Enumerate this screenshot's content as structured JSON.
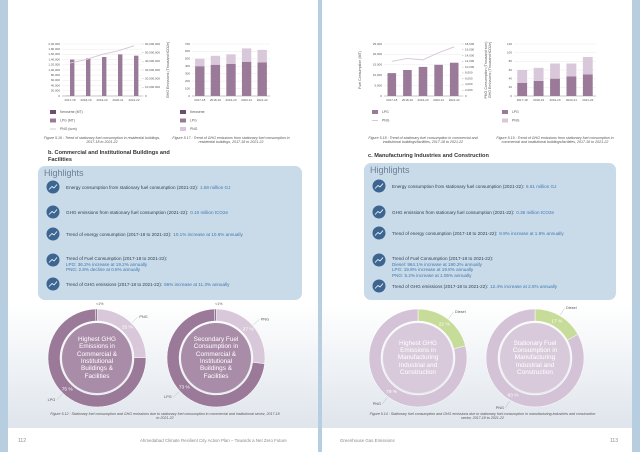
{
  "left_page": {
    "figures": [
      {
        "type": "bar_line",
        "categories": [
          "2017-18",
          "2018-19",
          "2019-20",
          "2020-21",
          "2021-22"
        ],
        "ylim": [
          0,
          200000
        ],
        "yticks": [
          0,
          {
            "value": 20000,
            "label": "20,000"
          },
          {
            "value": 40000,
            "label": "40,000"
          },
          {
            "value": 60000,
            "label": "60,000"
          },
          {
            "value": 80000,
            "label": "80,000"
          },
          {
            "value": 100000,
            "label": "1,00,000"
          },
          {
            "value": 120000,
            "label": "1,20,000"
          },
          {
            "value": 140000,
            "label": "1,40,000"
          },
          {
            "value": 160000,
            "label": "1,60,000"
          },
          {
            "value": 180000,
            "label": "1,80,000"
          },
          {
            "value": 200000,
            "label": "2,00,000"
          }
        ],
        "y2lim": [
          0,
          60000000
        ],
        "y2ticks": [
          0,
          {
            "value": 10000000,
            "label": "10,000,000"
          },
          {
            "value": 20000000,
            "label": "20,000,000"
          },
          {
            "value": 30000000,
            "label": "30,000,000"
          },
          {
            "value": 40000000,
            "label": "40,000,000"
          },
          {
            "value": 50000000,
            "label": "50,000,000"
          },
          {
            "value": 60000000,
            "label": "60,000,000"
          }
        ],
        "series": [
          {
            "name": "Kerosene (MT)",
            "color": "#6b4e6b",
            "values": [
              500,
              400,
              300,
              200,
              100
            ]
          },
          {
            "name": "LPG (MT)",
            "color": "#9a7a98",
            "values": [
              140000,
              145000,
              150000,
              160000,
              155000
            ]
          },
          {
            "name": "PNG (scm)",
            "color": "#d9c8da",
            "axis": "y2",
            "values": [
              38000000,
              42000000,
              48000000,
              52000000,
              58000000
            ]
          }
        ],
        "caption": "Figure 5.16 : Trend of stationary fuel consumption in residential buildings, 2017-18 to 2021-22"
      },
      {
        "type": "stacked_bar",
        "y_title": "GHG Emissions (Thousand tCO2e)",
        "categories": [
          "2017-18",
          "2018-19",
          "2019-20",
          "2020-21",
          "2021-22"
        ],
        "ylim": [
          0,
          700
        ],
        "yticks": [
          0,
          100,
          200,
          300,
          400,
          500,
          600,
          700
        ],
        "series": [
          {
            "name": "Kerosene",
            "color": "#6b4e6b",
            "values": [
              1,
              1,
              1,
              1,
              1
            ]
          },
          {
            "name": "LPG",
            "color": "#9a7a98",
            "values": [
              400,
              420,
              430,
              460,
              450
            ]
          },
          {
            "name": "PNG",
            "color": "#d9c8da",
            "values": [
              100,
              120,
              130,
              180,
              170
            ]
          }
        ],
        "caption": "Figure 5.17 : Trend of GHG emissions from stationary fuel consumption in residential buildings, 2017-18 to 2021-22"
      }
    ],
    "section_title": "b. Commercial and Institutional Buildings and Facilities",
    "highlights": {
      "title": "Highlights",
      "items": [
        {
          "label": "Energy consumption from stationary fuel consumption (2021-22):",
          "value": "1.58 million GJ"
        },
        {
          "label": "GHG emissions from stationary fuel consumption (2021-22):",
          "value": "0.10 million tCO2e"
        },
        {
          "label": "Trend of energy consumption (2017-18 to 2021-22):",
          "value": "10.1% increase at 10.6% annually"
        },
        {
          "label": "Trend of Fuel Consumption (2017-18 to 2021-22):",
          "lines": [
            "LPG: 36.2% increase at 19.2% annually",
            "PNG: 2.8% decline at 0.8% annually"
          ]
        },
        {
          "label": "Trend of GHG emissions (2017-18 to 2021-22):",
          "value": "56% increase at 11.3% annually"
        }
      ]
    },
    "donuts": [
      {
        "title": "Highest GHG Emissions in Commercial & Institutional Buildings & Facilities",
        "center_color": "#a98ca8",
        "segments": [
          {
            "name": "PNG",
            "value": 25,
            "label": "25 %",
            "color": "#d9c8da"
          },
          {
            "name": "LPG",
            "value": 75,
            "label": "75 %",
            "color": "#9a7a98"
          },
          {
            "value": 0.5,
            "label": "<1%",
            "color": "#6b4e6b"
          }
        ]
      },
      {
        "title": "Secondary Fuel Consumption in Commercial & Institutional Buildings & Facilities",
        "center_color": "#a98ca8",
        "segments": [
          {
            "name": "PNG",
            "value": 27,
            "label": "27 %",
            "color": "#d9c8da"
          },
          {
            "name": "LPG",
            "value": 73,
            "label": "73 %",
            "color": "#9a7a98"
          },
          {
            "value": 0.5,
            "label": "<1%",
            "color": "#6b4e6b"
          }
        ]
      }
    ],
    "caption": "Figure 5.12 : Stationary fuel consumption and GHG emissions due to stationary fuel consumption in commercial and institutional sector, 2017-18 to 2021-22",
    "footer": {
      "page": "112",
      "text": "Ahmedabad Climate Resilient City Action Plan – Towards a Net Zero Future"
    }
  },
  "right_page": {
    "figures": [
      {
        "type": "bar_line",
        "y_title": "Fuel Consumption (MT)",
        "y2_title": "PNG Consumption (Thousand scm)",
        "categories": [
          "2017-18",
          "2018-19",
          "2019-20",
          "2020-21",
          "2021-22"
        ],
        "ylim": [
          0,
          25000
        ],
        "yticks": [
          0,
          {
            "value": 5000,
            "label": "5,000"
          },
          {
            "value": 10000,
            "label": "10,000"
          },
          {
            "value": 15000,
            "label": "15,000"
          },
          {
            "value": 20000,
            "label": "20,000"
          },
          {
            "value": 25000,
            "label": "25,000"
          }
        ],
        "y2lim": [
          0,
          18000
        ],
        "y2ticks": [
          0,
          {
            "value": 2000,
            "label": "2,000"
          },
          {
            "value": 4000,
            "label": "4,000"
          },
          {
            "value": 6000,
            "label": "6,000"
          },
          {
            "value": 8000,
            "label": "8,000"
          },
          {
            "value": 10000,
            "label": "10,000"
          },
          {
            "value": 12000,
            "label": "12,000"
          },
          {
            "value": 14000,
            "label": "14,000"
          },
          {
            "value": 16000,
            "label": "16,000"
          },
          {
            "value": 18000,
            "label": "18,000"
          }
        ],
        "series": [
          {
            "name": "LPG",
            "color": "#9a7a98",
            "values": [
              11000,
              12500,
              14000,
              15000,
              16000
            ]
          },
          {
            "name": "PNG",
            "color": "#d9c8da",
            "axis": "y2",
            "values": [
              12000,
              13000,
              12500,
              15000,
              17000
            ]
          }
        ],
        "caption": "Figure 5.18 : Trend of stationary fuel consumption in commercial and institutional buildings/facilities, 2017-18 to 2021-22"
      },
      {
        "type": "stacked_bar",
        "y_title": "GHG Emissions (Thousand tCO2e)",
        "categories": [
          "2017-18",
          "2018-19",
          "2019-20",
          "2020-21",
          "2021-22"
        ],
        "ylim": [
          0,
          120
        ],
        "yticks": [
          0,
          20,
          40,
          60,
          80,
          100,
          120
        ],
        "series": [
          {
            "name": "LPG",
            "color": "#9a7a98",
            "values": [
              30,
              35,
              40,
              45,
              50
            ]
          },
          {
            "name": "PNG",
            "color": "#d9c8da",
            "values": [
              30,
              30,
              35,
              30,
              40
            ]
          }
        ],
        "caption": "Figure 5.19 : Trend of GHG emissions from stationary fuel consumption in commercial and institutional buildings/facilities, 2017-18 to 2021-22"
      }
    ],
    "section_title": "c. Manufacturing Industries and Construction",
    "highlights": {
      "title": "Highlights",
      "items": [
        {
          "label": "Energy consumption from stationary fuel consumption (2021-22):",
          "value": "6.61 million GJ"
        },
        {
          "label": "GHG emissions from stationary fuel consumption (2021-22):",
          "value": "0.36 million tCO2e"
        },
        {
          "label": "Trend of energy consumption (2017-18 to 2021-22):",
          "value": "8.9% increase at 1.8% annually"
        },
        {
          "label": "Trend of Fuel Consumption (2017-18 to 2021-22):",
          "lines": [
            "Diesel: 964.1% increase at 190.2% annually",
            "LPG: 19.8% increase at 19.8% annually",
            "PNG: 5.2% increase at 1.05% annually"
          ]
        },
        {
          "label": "Trend of GHG emissions (2017-18 to 2021-22):",
          "value": "12.4% increase at 2.5% annually"
        }
      ]
    },
    "donuts": [
      {
        "title": "Highest GHG Emissions in Manufacturing Industrial and Construction",
        "center_color": "#d9cadb",
        "segments": [
          {
            "name": "Diesel",
            "value": 21,
            "label": "21 %",
            "color": "#c6dc98"
          },
          {
            "name": "PNG",
            "value": 79,
            "label": "79 %",
            "color": "#d4c2d6"
          }
        ]
      },
      {
        "title": "Stationary Fuel Consumption in Manufacturing Industrial and Construction",
        "center_color": "#d9cadb",
        "segments": [
          {
            "name": "Diesel",
            "value": 17,
            "label": "17 %",
            "color": "#c6dc98"
          },
          {
            "name": "PNG",
            "value": 83,
            "label": "83 %",
            "color": "#d4c2d6"
          }
        ]
      }
    ],
    "caption": "Figure 5.14 : Stationary fuel consumption and GHG emissions due to stationary fuel consumption in manufacturing industries and construction sector, 2017-18 to 2021-22",
    "footer": {
      "page": "113",
      "text": "Greenhouse Gas Emissions"
    }
  }
}
